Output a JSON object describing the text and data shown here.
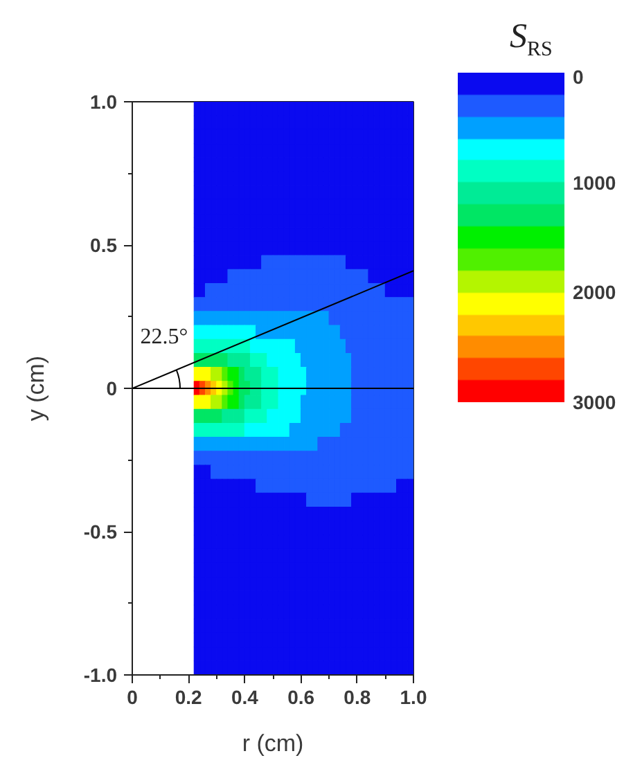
{
  "chart_data": {
    "type": "heatmap",
    "xlabel": "r (cm)",
    "ylabel": "y (cm)",
    "clabel": "S$_{RS}$",
    "x": [
      0.23,
      0.25,
      0.27,
      0.29,
      0.31,
      0.33,
      0.35,
      0.37,
      0.39,
      0.41,
      0.43,
      0.45,
      0.47,
      0.49,
      0.51,
      0.53,
      0.55,
      0.57,
      0.59,
      0.61,
      0.63,
      0.65,
      0.67,
      0.69,
      0.71,
      0.73,
      0.75,
      0.77,
      0.79,
      0.81,
      0.83,
      0.85,
      0.87,
      0.89,
      0.91,
      0.93,
      0.95,
      0.97,
      0.99
    ],
    "cells": [
      [
        100,
        100,
        100,
        100,
        100,
        100,
        100,
        100,
        100,
        100,
        100,
        100,
        100,
        100,
        100,
        100,
        100,
        100,
        100,
        100,
        100,
        100,
        100,
        100,
        100,
        100,
        100,
        100,
        100,
        100,
        100,
        100,
        100,
        100,
        100,
        100,
        100,
        100,
        100
      ],
      [
        100,
        100,
        100,
        100,
        100,
        100,
        100,
        100,
        100,
        100,
        100,
        100,
        100,
        100,
        100,
        100,
        100,
        100,
        100,
        100,
        100,
        100,
        100,
        100,
        100,
        100,
        100,
        100,
        100,
        100,
        100,
        100,
        100,
        100,
        100,
        100,
        100,
        100,
        100
      ],
      [
        100,
        100,
        100,
        100,
        100,
        100,
        100,
        100,
        100,
        100,
        100,
        100,
        100,
        100,
        100,
        100,
        100,
        100,
        100,
        100,
        100,
        100,
        100,
        100,
        100,
        100,
        100,
        100,
        100,
        100,
        100,
        100,
        100,
        100,
        100,
        100,
        100,
        100,
        100
      ],
      [
        100,
        100,
        100,
        100,
        100,
        100,
        100,
        100,
        100,
        100,
        100,
        100,
        100,
        100,
        100,
        100,
        100,
        100,
        100,
        100,
        100,
        100,
        100,
        100,
        100,
        100,
        100,
        100,
        100,
        100,
        100,
        100,
        100,
        100,
        100,
        100,
        100,
        100,
        100
      ],
      [
        100,
        100,
        100,
        100,
        100,
        100,
        100,
        100,
        100,
        100,
        100,
        100,
        100,
        100,
        100,
        100,
        100,
        100,
        100,
        100,
        100,
        100,
        100,
        100,
        100,
        100,
        100,
        100,
        100,
        100,
        100,
        100,
        100,
        100,
        100,
        100,
        100,
        100,
        100
      ],
      [
        100,
        100,
        100,
        100,
        100,
        100,
        100,
        100,
        100,
        100,
        100,
        100,
        100,
        100,
        100,
        100,
        100,
        100,
        100,
        100,
        100,
        100,
        100,
        100,
        100,
        100,
        100,
        100,
        100,
        100,
        100,
        100,
        100,
        100,
        100,
        100,
        100,
        100,
        100
      ],
      [
        100,
        100,
        100,
        100,
        100,
        100,
        100,
        100,
        100,
        100,
        100,
        100,
        100,
        100,
        100,
        100,
        100,
        100,
        100,
        100,
        100,
        100,
        100,
        100,
        100,
        100,
        100,
        100,
        100,
        100,
        100,
        100,
        100,
        100,
        100,
        100,
        100,
        100,
        100
      ],
      [
        100,
        100,
        100,
        100,
        100,
        100,
        100,
        100,
        100,
        100,
        100,
        100,
        100,
        100,
        100,
        100,
        100,
        100,
        100,
        100,
        100,
        100,
        100,
        100,
        100,
        100,
        100,
        100,
        100,
        100,
        100,
        100,
        100,
        100,
        100,
        100,
        100,
        100,
        100
      ],
      [
        100,
        100,
        100,
        100,
        100,
        100,
        100,
        100,
        100,
        100,
        100,
        100,
        100,
        100,
        100,
        100,
        100,
        100,
        100,
        100,
        100,
        100,
        100,
        100,
        100,
        100,
        100,
        100,
        100,
        100,
        100,
        100,
        100,
        100,
        100,
        100,
        100,
        100,
        100
      ],
      [
        100,
        100,
        100,
        100,
        100,
        100,
        100,
        100,
        100,
        100,
        100,
        100,
        100,
        100,
        100,
        100,
        100,
        100,
        100,
        100,
        100,
        100,
        100,
        100,
        100,
        100,
        100,
        100,
        100,
        100,
        100,
        100,
        100,
        100,
        100,
        100,
        100,
        100,
        100
      ],
      [
        100,
        100,
        100,
        100,
        100,
        100,
        100,
        100,
        100,
        100,
        100,
        100,
        100,
        100,
        100,
        100,
        100,
        100,
        100,
        100,
        100,
        100,
        100,
        100,
        100,
        100,
        100,
        100,
        100,
        100,
        100,
        100,
        100,
        100,
        100,
        100,
        100,
        100,
        100
      ],
      [
        100,
        100,
        100,
        100,
        100,
        100,
        100,
        100,
        100,
        100,
        100,
        100,
        300,
        300,
        300,
        300,
        300,
        300,
        300,
        300,
        300,
        300,
        300,
        300,
        300,
        300,
        300,
        100,
        100,
        100,
        100,
        100,
        100,
        100,
        100,
        100,
        100,
        100,
        100
      ],
      [
        100,
        100,
        100,
        100,
        100,
        100,
        300,
        300,
        300,
        300,
        300,
        300,
        300,
        300,
        300,
        300,
        300,
        300,
        300,
        300,
        300,
        300,
        300,
        300,
        300,
        300,
        300,
        300,
        300,
        300,
        300,
        100,
        100,
        100,
        100,
        100,
        100,
        100,
        100
      ],
      [
        100,
        100,
        300,
        300,
        300,
        300,
        300,
        300,
        300,
        300,
        300,
        300,
        300,
        300,
        300,
        300,
        300,
        300,
        300,
        300,
        300,
        300,
        300,
        300,
        300,
        300,
        300,
        300,
        300,
        300,
        300,
        300,
        300,
        300,
        100,
        100,
        100,
        100,
        100
      ],
      [
        300,
        300,
        300,
        300,
        300,
        300,
        300,
        300,
        300,
        300,
        300,
        300,
        300,
        300,
        300,
        300,
        300,
        300,
        300,
        300,
        300,
        300,
        300,
        300,
        300,
        300,
        300,
        300,
        300,
        300,
        300,
        300,
        300,
        300,
        300,
        300,
        300,
        300,
        300
      ],
      [
        500,
        500,
        500,
        500,
        500,
        500,
        500,
        500,
        500,
        500,
        500,
        500,
        500,
        500,
        500,
        500,
        500,
        500,
        500,
        500,
        500,
        500,
        500,
        500,
        300,
        300,
        300,
        300,
        300,
        300,
        300,
        300,
        300,
        300,
        300,
        300,
        300,
        300,
        300
      ],
      [
        700,
        700,
        700,
        700,
        700,
        700,
        700,
        700,
        700,
        700,
        700,
        500,
        500,
        500,
        500,
        500,
        500,
        500,
        500,
        500,
        500,
        500,
        500,
        500,
        500,
        500,
        300,
        300,
        300,
        300,
        300,
        300,
        300,
        300,
        300,
        300,
        300,
        300,
        300
      ],
      [
        900,
        900,
        900,
        900,
        900,
        900,
        900,
        900,
        900,
        900,
        700,
        700,
        700,
        700,
        700,
        700,
        700,
        700,
        500,
        500,
        500,
        500,
        500,
        500,
        500,
        500,
        500,
        300,
        300,
        300,
        300,
        300,
        300,
        300,
        300,
        300,
        300,
        300,
        300
      ],
      [
        1300,
        1300,
        1300,
        1300,
        1300,
        1300,
        1100,
        1100,
        1100,
        1100,
        900,
        900,
        900,
        700,
        700,
        700,
        700,
        700,
        700,
        500,
        500,
        500,
        500,
        500,
        500,
        500,
        500,
        500,
        300,
        300,
        300,
        300,
        300,
        300,
        300,
        300,
        300,
        300,
        300
      ],
      [
        2100,
        2100,
        2100,
        1900,
        1900,
        1700,
        1500,
        1500,
        1300,
        1100,
        1100,
        1100,
        900,
        900,
        900,
        700,
        700,
        700,
        700,
        700,
        500,
        500,
        500,
        500,
        500,
        500,
        500,
        500,
        300,
        300,
        300,
        300,
        300,
        300,
        300,
        300,
        300,
        300,
        300
      ],
      [
        2900,
        2700,
        2500,
        2300,
        2100,
        1900,
        1700,
        1500,
        1300,
        1300,
        1100,
        1100,
        900,
        900,
        900,
        700,
        700,
        700,
        700,
        700,
        500,
        500,
        500,
        500,
        500,
        500,
        500,
        500,
        300,
        300,
        300,
        300,
        300,
        300,
        300,
        300,
        300,
        300,
        300
      ],
      [
        2100,
        2100,
        2100,
        1900,
        1900,
        1700,
        1500,
        1500,
        1300,
        1100,
        1100,
        1100,
        900,
        900,
        900,
        700,
        700,
        700,
        700,
        500,
        500,
        500,
        500,
        500,
        500,
        500,
        500,
        500,
        300,
        300,
        300,
        300,
        300,
        300,
        300,
        300,
        300,
        300,
        300
      ],
      [
        1300,
        1300,
        1300,
        1300,
        1300,
        1100,
        1100,
        1100,
        1100,
        900,
        900,
        900,
        900,
        700,
        700,
        700,
        700,
        700,
        700,
        500,
        500,
        500,
        500,
        500,
        500,
        500,
        500,
        500,
        300,
        300,
        300,
        300,
        300,
        300,
        300,
        300,
        300,
        300,
        300
      ],
      [
        900,
        900,
        900,
        900,
        900,
        900,
        900,
        900,
        900,
        700,
        700,
        700,
        700,
        700,
        700,
        700,
        700,
        500,
        500,
        500,
        500,
        500,
        500,
        500,
        500,
        500,
        300,
        300,
        300,
        300,
        300,
        300,
        300,
        300,
        300,
        300,
        300,
        300,
        300
      ],
      [
        500,
        500,
        500,
        500,
        500,
        500,
        500,
        500,
        500,
        500,
        500,
        500,
        500,
        500,
        500,
        500,
        500,
        500,
        500,
        500,
        500,
        500,
        300,
        300,
        300,
        300,
        300,
        300,
        300,
        300,
        300,
        300,
        300,
        300,
        300,
        300,
        300,
        300,
        300
      ],
      [
        300,
        300,
        300,
        300,
        300,
        300,
        300,
        300,
        300,
        300,
        300,
        300,
        300,
        300,
        300,
        300,
        300,
        300,
        300,
        300,
        300,
        300,
        300,
        300,
        300,
        300,
        300,
        300,
        300,
        300,
        300,
        300,
        300,
        300,
        300,
        300,
        300,
        300,
        300
      ],
      [
        100,
        100,
        100,
        300,
        300,
        300,
        300,
        300,
        300,
        300,
        300,
        300,
        300,
        300,
        300,
        300,
        300,
        300,
        300,
        300,
        300,
        300,
        300,
        300,
        300,
        300,
        300,
        300,
        300,
        300,
        300,
        300,
        300,
        300,
        300,
        300,
        300,
        300,
        300
      ],
      [
        100,
        100,
        100,
        100,
        100,
        100,
        100,
        100,
        100,
        100,
        100,
        300,
        300,
        300,
        300,
        300,
        300,
        300,
        300,
        300,
        300,
        300,
        300,
        300,
        300,
        300,
        300,
        300,
        300,
        300,
        300,
        300,
        300,
        300,
        300,
        300,
        100,
        100,
        100
      ],
      [
        100,
        100,
        100,
        100,
        100,
        100,
        100,
        100,
        100,
        100,
        100,
        100,
        100,
        100,
        100,
        100,
        100,
        100,
        100,
        100,
        300,
        300,
        300,
        300,
        300,
        300,
        300,
        300,
        100,
        100,
        100,
        100,
        100,
        100,
        100,
        100,
        100,
        100,
        100
      ],
      [
        100,
        100,
        100,
        100,
        100,
        100,
        100,
        100,
        100,
        100,
        100,
        100,
        100,
        100,
        100,
        100,
        100,
        100,
        100,
        100,
        100,
        100,
        100,
        100,
        100,
        100,
        100,
        100,
        100,
        100,
        100,
        100,
        100,
        100,
        100,
        100,
        100,
        100,
        100
      ],
      [
        100,
        100,
        100,
        100,
        100,
        100,
        100,
        100,
        100,
        100,
        100,
        100,
        100,
        100,
        100,
        100,
        100,
        100,
        100,
        100,
        100,
        100,
        100,
        100,
        100,
        100,
        100,
        100,
        100,
        100,
        100,
        100,
        100,
        100,
        100,
        100,
        100,
        100,
        100
      ],
      [
        100,
        100,
        100,
        100,
        100,
        100,
        100,
        100,
        100,
        100,
        100,
        100,
        100,
        100,
        100,
        100,
        100,
        100,
        100,
        100,
        100,
        100,
        100,
        100,
        100,
        100,
        100,
        100,
        100,
        100,
        100,
        100,
        100,
        100,
        100,
        100,
        100,
        100,
        100
      ],
      [
        100,
        100,
        100,
        100,
        100,
        100,
        100,
        100,
        100,
        100,
        100,
        100,
        100,
        100,
        100,
        100,
        100,
        100,
        100,
        100,
        100,
        100,
        100,
        100,
        100,
        100,
        100,
        100,
        100,
        100,
        100,
        100,
        100,
        100,
        100,
        100,
        100,
        100,
        100
      ],
      [
        100,
        100,
        100,
        100,
        100,
        100,
        100,
        100,
        100,
        100,
        100,
        100,
        100,
        100,
        100,
        100,
        100,
        100,
        100,
        100,
        100,
        100,
        100,
        100,
        100,
        100,
        100,
        100,
        100,
        100,
        100,
        100,
        100,
        100,
        100,
        100,
        100,
        100,
        100
      ],
      [
        100,
        100,
        100,
        100,
        100,
        100,
        100,
        100,
        100,
        100,
        100,
        100,
        100,
        100,
        100,
        100,
        100,
        100,
        100,
        100,
        100,
        100,
        100,
        100,
        100,
        100,
        100,
        100,
        100,
        100,
        100,
        100,
        100,
        100,
        100,
        100,
        100,
        100,
        100
      ],
      [
        100,
        100,
        100,
        100,
        100,
        100,
        100,
        100,
        100,
        100,
        100,
        100,
        100,
        100,
        100,
        100,
        100,
        100,
        100,
        100,
        100,
        100,
        100,
        100,
        100,
        100,
        100,
        100,
        100,
        100,
        100,
        100,
        100,
        100,
        100,
        100,
        100,
        100,
        100
      ],
      [
        100,
        100,
        100,
        100,
        100,
        100,
        100,
        100,
        100,
        100,
        100,
        100,
        100,
        100,
        100,
        100,
        100,
        100,
        100,
        100,
        100,
        100,
        100,
        100,
        100,
        100,
        100,
        100,
        100,
        100,
        100,
        100,
        100,
        100,
        100,
        100,
        100,
        100,
        100
      ],
      [
        100,
        100,
        100,
        100,
        100,
        100,
        100,
        100,
        100,
        100,
        100,
        100,
        100,
        100,
        100,
        100,
        100,
        100,
        100,
        100,
        100,
        100,
        100,
        100,
        100,
        100,
        100,
        100,
        100,
        100,
        100,
        100,
        100,
        100,
        100,
        100,
        100,
        100,
        100
      ],
      [
        100,
        100,
        100,
        100,
        100,
        100,
        100,
        100,
        100,
        100,
        100,
        100,
        100,
        100,
        100,
        100,
        100,
        100,
        100,
        100,
        100,
        100,
        100,
        100,
        100,
        100,
        100,
        100,
        100,
        100,
        100,
        100,
        100,
        100,
        100,
        100,
        100,
        100,
        100
      ],
      [
        100,
        100,
        100,
        100,
        100,
        100,
        100,
        100,
        100,
        100,
        100,
        100,
        100,
        100,
        100,
        100,
        100,
        100,
        100,
        100,
        100,
        100,
        100,
        100,
        100,
        100,
        100,
        100,
        100,
        100,
        100,
        100,
        100,
        100,
        100,
        100,
        100,
        100,
        100
      ],
      [
        100,
        100,
        100,
        100,
        100,
        100,
        100,
        100,
        100,
        100,
        100,
        100,
        100,
        100,
        100,
        100,
        100,
        100,
        100,
        100,
        100,
        100,
        100,
        100,
        100,
        100,
        100,
        100,
        100,
        100,
        100,
        100,
        100,
        100,
        100,
        100,
        100,
        100,
        100
      ]
    ],
    "clim": [
      0,
      3000
    ],
    "cticks": [
      0,
      1000,
      2000,
      3000
    ],
    "colors": [
      "#0a0af0",
      "#1e5aff",
      "#00a0ff",
      "#00ffff",
      "#00ffc3",
      "#00eb96",
      "#00e664",
      "#00f000",
      "#50f000",
      "#b4f500",
      "#ffff00",
      "#ffc800",
      "#ff8c00",
      "#ff4600",
      "#ff0000"
    ],
    "xlim": [
      0,
      1
    ],
    "xticks": [
      0,
      {
        "value": 0.1,
        "label": null
      },
      0.2,
      {
        "value": 0.3,
        "label": null
      },
      0.4,
      {
        "value": 0.5,
        "label": null
      },
      0.6,
      {
        "value": 0.7,
        "label": null
      },
      0.8,
      {
        "value": 0.9,
        "label": null
      },
      {
        "value": 1,
        "label": "1.0"
      }
    ],
    "ylim": [
      -1,
      1
    ],
    "yticks": [
      {
        "value": -1,
        "label": "-1.0"
      },
      {
        "value": -0.75,
        "label": null
      },
      -0.5,
      {
        "value": -0.25,
        "label": null
      },
      0,
      {
        "value": 0.25,
        "label": null
      },
      0.5,
      {
        "value": 0.75,
        "label": null
      },
      {
        "value": 1,
        "label": "1.0"
      }
    ],
    "series": [
      {
        "type": "line",
        "color": "#000000",
        "x": [
          0,
          1
        ],
        "values": [
          0,
          0.41
        ]
      }
    ],
    "ref_lines": [
      {
        "axis": "y",
        "value": 0,
        "color": "#000000"
      }
    ],
    "annotations": [
      "22.5°"
    ]
  }
}
